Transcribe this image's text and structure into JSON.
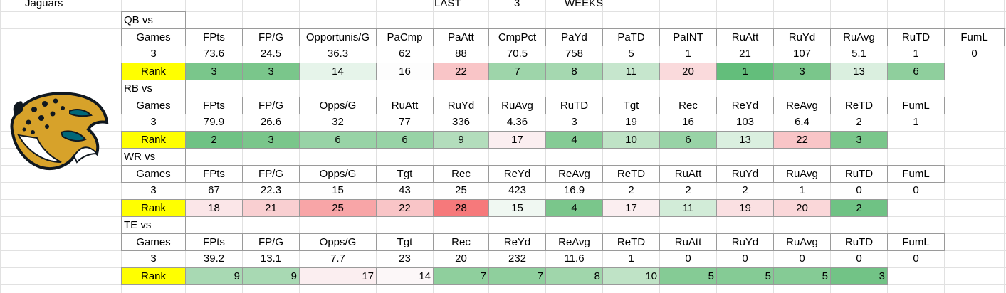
{
  "header": {
    "team": "Jaguars",
    "period_word": "LAST",
    "period_count": 3,
    "period_unit": "WEEKS"
  },
  "sections": [
    {
      "label": "QB vs",
      "rank_label": "Rank",
      "rank_align": "center",
      "columns": [
        "Games",
        "FPts",
        "FP/G",
        "Opportunis/G",
        "PaCmp",
        "PaAtt",
        "CmpPct",
        "PaYd",
        "PaTD",
        "PaINT",
        "RuAtt",
        "RuYd",
        "RuAvg",
        "RuTD",
        "FumL"
      ],
      "values": [
        3,
        73.6,
        24.5,
        36.3,
        62,
        88,
        70.5,
        758,
        5,
        1,
        21,
        107,
        5.1,
        1,
        0
      ],
      "ranks": [
        3,
        3,
        14,
        16,
        22,
        7,
        8,
        11,
        20,
        1,
        3,
        13,
        6
      ],
      "rank_colors": [
        "#7ac68b",
        "#7ac68b",
        "#e6f4ea",
        "#fdfdfd",
        "#f9c5c7",
        "#9ed5aa",
        "#a5d8b0",
        "#c6e6cd",
        "#fadadc",
        "#63be7b",
        "#7ac68b",
        "#daefdf",
        "#8fcf9d"
      ]
    },
    {
      "label": "RB vs",
      "rank_label": "Rank",
      "rank_align": "center",
      "columns": [
        "Games",
        "FPts",
        "FP/G",
        "Opps/G",
        "RuAtt",
        "RuYd",
        "RuAvg",
        "RuTD",
        "Tgt",
        "Rec",
        "ReYd",
        "ReAvg",
        "ReTD",
        "FumL"
      ],
      "values": [
        3,
        79.9,
        26.6,
        32,
        77,
        336,
        4.36,
        3,
        19,
        16,
        103,
        6.4,
        2,
        1
      ],
      "ranks": [
        2,
        3,
        6,
        6,
        9,
        17,
        4,
        10,
        6,
        13,
        22,
        3
      ],
      "rank_colors": [
        "#6fc284",
        "#7ac68b",
        "#98d3a6",
        "#98d3a6",
        "#b3ddbc",
        "#fbeef0",
        "#85cb95",
        "#bfe3c6",
        "#98d3a6",
        "#daefdf",
        "#f9c5c7",
        "#7ac68b"
      ]
    },
    {
      "label": "WR vs",
      "rank_label": "Rank",
      "rank_align": "center",
      "columns": [
        "Games",
        "FPts",
        "FP/G",
        "Opps/G",
        "Tgt",
        "Rec",
        "ReYd",
        "ReAvg",
        "ReTD",
        "RuAtt",
        "RuYd",
        "RuAvg",
        "RuTD",
        "FumL"
      ],
      "values": [
        3,
        67,
        22.3,
        15,
        43,
        25,
        423,
        16.9,
        2,
        2,
        2,
        1,
        0,
        0
      ],
      "ranks": [
        18,
        21,
        25,
        22,
        28,
        15,
        4,
        17,
        11,
        19,
        20,
        2
      ],
      "rank_colors": [
        "#fbe6e8",
        "#f9cfd1",
        "#f8a5a7",
        "#f9c5c7",
        "#f6797b",
        "#f0f8f2",
        "#7ac68b",
        "#fbeef0",
        "#d2ecd8",
        "#fae0e2",
        "#fad7d9",
        "#6fc284"
      ]
    },
    {
      "label": "TE vs",
      "rank_label": "Rank",
      "rank_align": "right",
      "columns": [
        "Games",
        "FPts",
        "FP/G",
        "Opps/G",
        "Tgt",
        "Rec",
        "ReYd",
        "ReAvg",
        "ReTD",
        "RuAtt",
        "RuYd",
        "RuAvg",
        "RuTD",
        "FumL"
      ],
      "values": [
        3,
        39.2,
        13.1,
        7.7,
        23,
        20,
        232,
        11.6,
        1,
        0,
        0,
        0,
        0,
        0
      ],
      "ranks": [
        9,
        9,
        17,
        14,
        7,
        7,
        8,
        10,
        5,
        5,
        5,
        3
      ],
      "rank_colors": [
        "#a8d9b3",
        "#a8d9b3",
        "#fbeef0",
        "#fcf7f8",
        "#8fcf9d",
        "#8fcf9d",
        "#a0d6ab",
        "#bfe3c6",
        "#85cb95",
        "#85cb95",
        "#85cb95",
        "#72c386"
      ]
    }
  ]
}
